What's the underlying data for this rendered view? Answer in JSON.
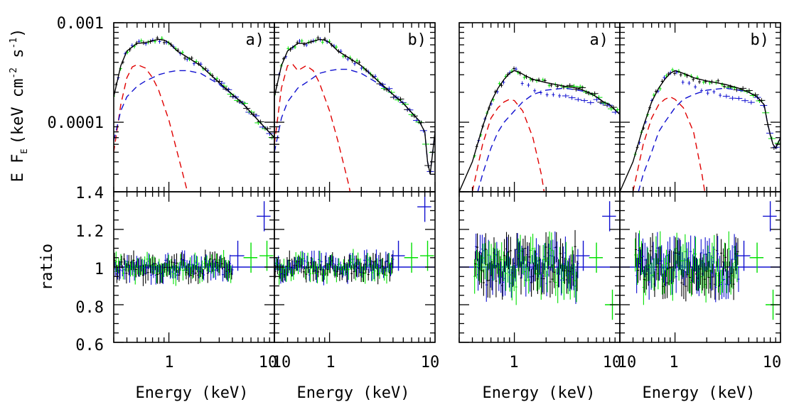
{
  "chart_data": {
    "type": "line",
    "ylabel_top": "E F",
    "ylabel_top_sub": "E",
    "ylabel_top_units": "(keV cm",
    "ylabel_top_units_exp": "-2",
    "ylabel_top_units_mid": " s",
    "ylabel_top_units_exp2": "-1",
    "ylabel_top_units_end": ")",
    "ylabel_bottom": "ratio",
    "xlabel": "Energy (keV)",
    "x_scale": "log",
    "y_top_scale": "log",
    "xlim": [
      0.3,
      10
    ],
    "ylim_top": [
      2e-05,
      0.001
    ],
    "ylim_bottom": [
      0.6,
      1.4
    ],
    "y_top_ticklabels": [
      "0.001",
      "0.0001"
    ],
    "y_bottom_ticklabels": [
      "1.4",
      "1.2",
      "1",
      "0.8",
      "0.6"
    ],
    "x_ticklabels": [
      "1",
      "10"
    ],
    "colors": {
      "data": "#000000",
      "model": "#000000",
      "comp1": "#e00000",
      "comp2": "#1010d0",
      "green": "#00e000",
      "blue": "#1010d0"
    },
    "panels": [
      {
        "label": "a)",
        "model_x": [
          0.3,
          0.35,
          0.4,
          0.5,
          0.6,
          0.7,
          0.8,
          0.9,
          1.0,
          1.2,
          1.5,
          2.0,
          3.0,
          4.0,
          5.0,
          6.0,
          7.0,
          8.0,
          10.0
        ],
        "model": [
          0.00018,
          0.00037,
          0.00052,
          0.00062,
          0.00063,
          0.00066,
          0.00068,
          0.00067,
          0.00063,
          0.00052,
          0.00045,
          0.00037,
          0.00025,
          0.00019,
          0.000155,
          0.000125,
          0.000105,
          9e-05,
          7e-05
        ],
        "comp1_x": [
          0.3,
          0.35,
          0.4,
          0.45,
          0.5,
          0.6,
          0.7,
          0.8,
          1.0,
          1.2,
          1.5,
          1.7,
          1.8
        ],
        "comp1": [
          5e-05,
          0.00015,
          0.00028,
          0.00036,
          0.00038,
          0.00035,
          0.00028,
          0.00021,
          0.000105,
          5e-05,
          2e-05,
          9e-06,
          6e-06
        ],
        "comp2_x": [
          0.3,
          0.35,
          0.4,
          0.5,
          0.6,
          0.7,
          0.8,
          1.0,
          1.2,
          1.5,
          2.0,
          3.0,
          4.0,
          5.0,
          6.0,
          7.0,
          8.0,
          10.0
        ],
        "comp2": [
          6.5e-05,
          0.00013,
          0.00018,
          0.00023,
          0.00026,
          0.00028,
          0.0003,
          0.00032,
          0.00033,
          0.00033,
          0.00031,
          0.00024,
          0.00019,
          0.000155,
          0.000125,
          0.000105,
          9e-05,
          7e-05
        ]
      },
      {
        "label": "b)",
        "model_x": [
          0.3,
          0.35,
          0.4,
          0.5,
          0.6,
          0.7,
          0.8,
          0.9,
          1.0,
          1.2,
          1.5,
          2.0,
          3.0,
          4.0,
          5.0,
          6.0,
          7.0,
          8.0,
          8.5,
          9.0,
          10.0
        ],
        "model": [
          0.00018,
          0.00037,
          0.00052,
          0.00062,
          0.00062,
          0.00065,
          0.00068,
          0.00067,
          0.00063,
          0.00052,
          0.00045,
          0.00037,
          0.00025,
          0.00019,
          0.000155,
          0.000125,
          0.000105,
          8e-05,
          4e-05,
          3e-05,
          8e-05
        ],
        "comp1_x": [
          0.3,
          0.35,
          0.4,
          0.45,
          0.5,
          0.6,
          0.7,
          0.8,
          1.0,
          1.2,
          1.5,
          1.8,
          2.0
        ],
        "comp1": [
          6e-05,
          0.00022,
          0.00037,
          0.00038,
          0.00033,
          0.00037,
          0.00033,
          0.00025,
          0.00013,
          6.5e-05,
          2.5e-05,
          1e-05,
          6e-06
        ],
        "comp2_x": [
          0.3,
          0.35,
          0.4,
          0.5,
          0.6,
          0.7,
          0.8,
          1.0,
          1.2,
          1.5,
          2.0,
          3.0,
          4.0,
          5.0,
          6.0,
          7.0,
          8.0,
          8.5,
          9.0,
          10.0
        ],
        "comp2": [
          5e-05,
          0.00011,
          0.00016,
          0.00022,
          0.00025,
          0.00028,
          0.00031,
          0.00033,
          0.00034,
          0.00034,
          0.00031,
          0.00024,
          0.00019,
          0.000155,
          0.000125,
          0.000105,
          8e-05,
          4e-05,
          3e-05,
          8e-05
        ]
      },
      {
        "label": "a)",
        "model_x": [
          0.3,
          0.4,
          0.5,
          0.6,
          0.7,
          0.8,
          0.9,
          1.0,
          1.1,
          1.3,
          1.5,
          2.0,
          3.0,
          4.0,
          5.0,
          6.0,
          7.0,
          8.0,
          10.0
        ],
        "model": [
          2e-05,
          4e-05,
          9e-05,
          0.00016,
          0.00022,
          0.00027,
          0.00031,
          0.00033,
          0.00032,
          0.00029,
          0.00027,
          0.00025,
          0.00023,
          0.00022,
          0.0002,
          0.00018,
          0.00016,
          0.00015,
          0.00012
        ],
        "comp1_x": [
          0.4,
          0.5,
          0.6,
          0.7,
          0.8,
          0.9,
          1.0,
          1.2,
          1.5,
          1.8,
          2.0,
          2.2
        ],
        "comp1": [
          2e-05,
          6e-05,
          0.00011,
          0.00014,
          0.00016,
          0.00017,
          0.000165,
          0.00013,
          7e-05,
          3e-05,
          1.5e-05,
          6e-06
        ],
        "comp2_x": [
          0.45,
          0.5,
          0.6,
          0.7,
          0.8,
          1.0,
          1.2,
          1.5,
          2.0,
          3.0,
          4.0,
          5.0,
          6.0,
          7.0,
          8.0,
          10.0
        ],
        "comp2": [
          2e-05,
          3e-05,
          5.5e-05,
          8e-05,
          0.0001,
          0.00013,
          0.00016,
          0.00019,
          0.00021,
          0.00022,
          0.00021,
          0.0002,
          0.00018,
          0.00016,
          0.00015,
          0.00012
        ]
      },
      {
        "label": "b)",
        "model_x": [
          0.3,
          0.4,
          0.5,
          0.6,
          0.7,
          0.8,
          0.9,
          1.0,
          1.1,
          1.3,
          1.5,
          2.0,
          3.0,
          4.0,
          5.0,
          6.0,
          7.0,
          7.5,
          8.0,
          8.5,
          9.0,
          10.0
        ],
        "model": [
          2e-05,
          4e-05,
          9e-05,
          0.00016,
          0.00022,
          0.00027,
          0.00031,
          0.00033,
          0.00032,
          0.0003,
          0.00028,
          0.00026,
          0.00024,
          0.00022,
          0.0002,
          0.00018,
          0.00015,
          0.0001,
          7.5e-05,
          6e-05,
          5.5e-05,
          7e-05
        ],
        "comp1_x": [
          0.4,
          0.5,
          0.6,
          0.7,
          0.8,
          0.9,
          1.0,
          1.2,
          1.5,
          1.8,
          2.0,
          2.2
        ],
        "comp1": [
          2e-05,
          6e-05,
          0.00011,
          0.00015,
          0.00017,
          0.00018,
          0.00017,
          0.00014,
          8e-05,
          3e-05,
          1.5e-05,
          6e-06
        ],
        "comp2_x": [
          0.45,
          0.5,
          0.6,
          0.7,
          0.8,
          1.0,
          1.2,
          1.5,
          2.0,
          3.0,
          4.0,
          5.0,
          6.0,
          7.0,
          7.5,
          8.0,
          8.5,
          9.0,
          10.0
        ],
        "comp2": [
          2e-05,
          3e-05,
          5e-05,
          8e-05,
          0.0001,
          0.00014,
          0.00017,
          0.00019,
          0.00021,
          0.00022,
          0.00021,
          0.0002,
          0.00018,
          0.00015,
          0.0001,
          7.5e-05,
          6e-05,
          5.5e-05,
          7e-05
        ]
      }
    ]
  }
}
